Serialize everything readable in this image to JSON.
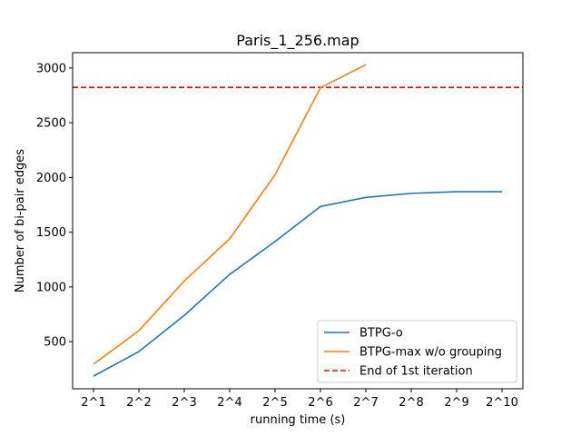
{
  "chart_data": {
    "type": "line",
    "title": "Paris_1_256.map",
    "xlabel": "running time (s)",
    "ylabel": "Number of bi-pair edges",
    "x_categories": [
      "2^1",
      "2^2",
      "2^3",
      "2^4",
      "2^5",
      "2^6",
      "2^7",
      "2^8",
      "2^9",
      "2^10"
    ],
    "ylim": [
      70,
      3140
    ],
    "y_ticks": [
      500,
      1000,
      1500,
      2000,
      2500,
      3000
    ],
    "grid": false,
    "legend_position": "lower-right",
    "series": [
      {
        "name": "BTPG-o",
        "color": "#1f77b4",
        "line_style": "solid",
        "values": [
          185,
          410,
          740,
          1115,
          1415,
          1735,
          1818,
          1855,
          1870,
          1870
        ]
      },
      {
        "name": "BTPG-max w/o grouping",
        "color": "#ff7f0e",
        "line_style": "solid",
        "values": [
          295,
          600,
          1055,
          1440,
          2025,
          2820,
          3030,
          null,
          null,
          null
        ]
      }
    ],
    "reference_lines": [
      {
        "name": "End of 1st iteration",
        "orientation": "horizontal",
        "y": 2823,
        "color": "#ff0000",
        "line_style": "dashed"
      }
    ]
  }
}
